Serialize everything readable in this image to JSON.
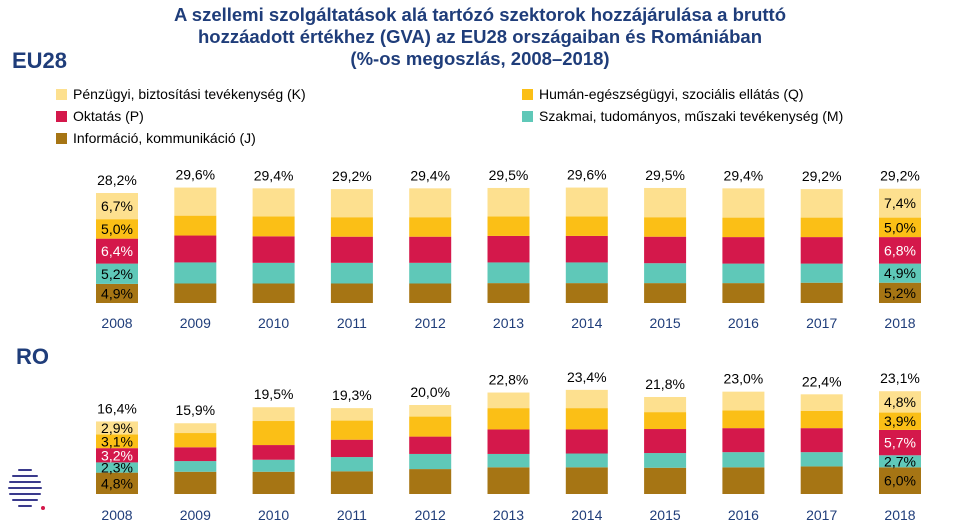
{
  "title_lines": [
    "A szellemi szolgáltatások alá tartózó szektorok hozzájárulása a bruttó",
    "hozzáadott értékhez (GVA) az EU28 országaiban és Romániában",
    "(%-os megoszlás, 2008–2018)"
  ],
  "legend": [
    {
      "key": "K",
      "label": "Pénzügyi, biztosítási tevékenység (K)",
      "color": "#fde08f"
    },
    {
      "key": "Q",
      "label": "Humán-egészségügyi, szociális ellátás (Q)",
      "color": "#fbbf16"
    },
    {
      "key": "P",
      "label": "Oktatás (P)",
      "color": "#d4184b"
    },
    {
      "key": "M",
      "label": "Szakmai, tudományos, műszaki tevékenység (M)",
      "color": "#5fc8b8"
    },
    {
      "key": "J",
      "label": "Információ, kommunikáció (J)",
      "color": "#a67514"
    }
  ],
  "chart_data": [
    {
      "type": "bar",
      "stacked": true,
      "title": "EU28",
      "categories": [
        "2008",
        "2009",
        "2010",
        "2011",
        "2012",
        "2013",
        "2014",
        "2015",
        "2016",
        "2017",
        "2018"
      ],
      "totals": [
        "28,2%",
        "29,6%",
        "29,4%",
        "29,2%",
        "29,4%",
        "29,5%",
        "29,6%",
        "29,5%",
        "29,4%",
        "29,2%",
        "29,2%"
      ],
      "series": [
        {
          "name": "Információ, kommunikáció (J)",
          "values": [
            4.9,
            5.0,
            5.0,
            5.0,
            5.0,
            5.1,
            5.1,
            5.1,
            5.1,
            5.2,
            5.2
          ],
          "labels": [
            "4,9%",
            "",
            "",
            "",
            "",
            "",
            "",
            "",
            "",
            "",
            "5,2%"
          ]
        },
        {
          "name": "Szakmai, tudományos, műszaki tevékenység (M)",
          "values": [
            5.2,
            5.4,
            5.3,
            5.3,
            5.3,
            5.3,
            5.3,
            5.1,
            5.0,
            4.9,
            4.9
          ],
          "labels": [
            "5,2%",
            "",
            "",
            "",
            "",
            "",
            "",
            "",
            "",
            "",
            "4,9%"
          ]
        },
        {
          "name": "Oktatás (P)",
          "values": [
            6.4,
            6.9,
            6.8,
            6.7,
            6.7,
            6.8,
            6.8,
            6.8,
            6.8,
            6.8,
            6.8
          ],
          "labels": [
            "6,4%",
            "",
            "",
            "",
            "",
            "",
            "",
            "",
            "",
            "",
            "6,8%"
          ]
        },
        {
          "name": "Humán-egészségügyi, szociális ellátás (Q)",
          "values": [
            5.0,
            5.1,
            5.1,
            5.0,
            5.0,
            5.0,
            5.0,
            5.0,
            5.0,
            5.0,
            5.0
          ],
          "labels": [
            "5,0%",
            "",
            "",
            "",
            "",
            "",
            "",
            "",
            "",
            "",
            "5,0%"
          ]
        },
        {
          "name": "Pénzügyi, biztosítási tevékenység (K)",
          "values": [
            6.7,
            7.2,
            7.2,
            7.2,
            7.4,
            7.3,
            7.4,
            7.5,
            7.5,
            7.3,
            7.4
          ],
          "labels": [
            "6,7%",
            "",
            "",
            "",
            "",
            "",
            "",
            "",
            "",
            "",
            "7,4%"
          ]
        }
      ]
    },
    {
      "type": "bar",
      "stacked": true,
      "title": "RO",
      "categories": [
        "2008",
        "2009",
        "2010",
        "2011",
        "2012",
        "2013",
        "2014",
        "2015",
        "2016",
        "2017",
        "2018"
      ],
      "totals": [
        "16,4%",
        "15,9%",
        "19,5%",
        "19,3%",
        "20,0%",
        "22,8%",
        "23,4%",
        "21,8%",
        "23,0%",
        "22,4%",
        "23,1%"
      ],
      "series": [
        {
          "name": "Információ, kommunikáció (J)",
          "values": [
            4.8,
            5.0,
            5.0,
            5.1,
            5.6,
            6.0,
            6.0,
            5.9,
            6.0,
            6.2,
            6.0
          ],
          "labels": [
            "4,8%",
            "",
            "",
            "",
            "",
            "",
            "",
            "",
            "",
            "",
            "6,0%"
          ]
        },
        {
          "name": "Szakmai, tudományos, műszaki tevékenység (M)",
          "values": [
            2.3,
            2.4,
            2.7,
            3.2,
            3.4,
            3.0,
            3.1,
            3.3,
            3.4,
            3.2,
            2.7
          ],
          "labels": [
            "2,3%",
            "",
            "",
            "",
            "",
            "",
            "",
            "",
            "",
            "",
            "2,7%"
          ]
        },
        {
          "name": "Oktatás (P)",
          "values": [
            3.2,
            3.1,
            3.3,
            3.9,
            3.9,
            5.5,
            5.4,
            5.4,
            5.4,
            5.4,
            5.7
          ],
          "labels": [
            "3,2%",
            "",
            "",
            "",
            "",
            "",
            "",
            "",
            "",
            "",
            "5,7%"
          ]
        },
        {
          "name": "Humán-egészségügyi, szociális ellátás (Q)",
          "values": [
            3.1,
            3.2,
            5.4,
            4.3,
            4.5,
            4.8,
            4.8,
            3.8,
            4.0,
            3.9,
            3.9
          ],
          "labels": [
            "3,1%",
            "",
            "",
            "",
            "",
            "",
            "",
            "",
            "",
            "",
            "3,9%"
          ]
        },
        {
          "name": "Pénzügyi, biztosítási tevékenység (K)",
          "values": [
            2.9,
            2.2,
            3.1,
            2.8,
            2.6,
            3.5,
            4.1,
            3.4,
            4.2,
            3.7,
            4.8
          ],
          "labels": [
            "2,9%",
            "",
            "",
            "",
            "",
            "",
            "",
            "",
            "",
            "",
            "4,8%"
          ]
        }
      ]
    }
  ]
}
